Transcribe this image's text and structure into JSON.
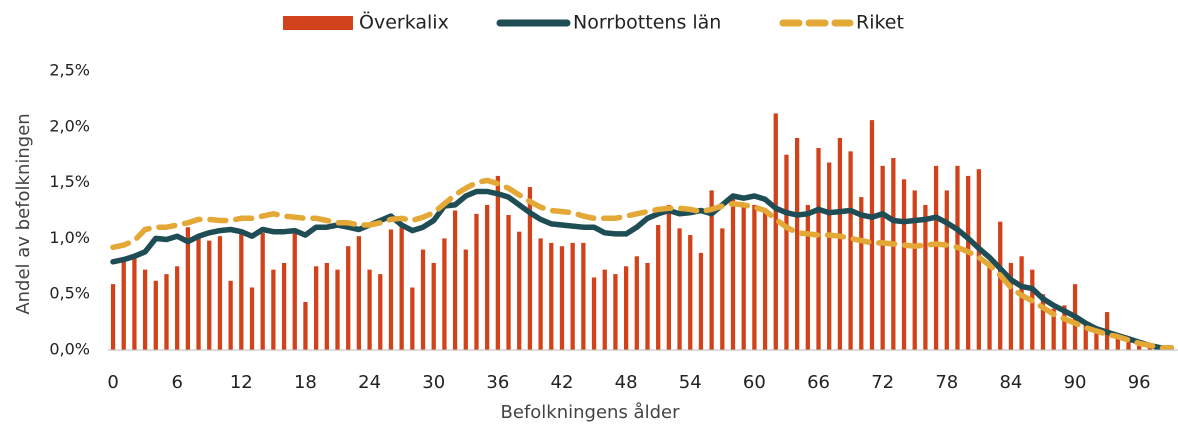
{
  "chart_data": {
    "type": "bar",
    "x_label": "Befolkningens ålder",
    "y_label": "Andel av befolkningen",
    "x": [
      0,
      1,
      2,
      3,
      4,
      5,
      6,
      7,
      8,
      9,
      10,
      11,
      12,
      13,
      14,
      15,
      16,
      17,
      18,
      19,
      20,
      21,
      22,
      23,
      24,
      25,
      26,
      27,
      28,
      29,
      30,
      31,
      32,
      33,
      34,
      35,
      36,
      37,
      38,
      39,
      40,
      41,
      42,
      43,
      44,
      45,
      46,
      47,
      48,
      49,
      50,
      51,
      52,
      53,
      54,
      55,
      56,
      57,
      58,
      59,
      60,
      61,
      62,
      63,
      64,
      65,
      66,
      67,
      68,
      69,
      70,
      71,
      72,
      73,
      74,
      75,
      76,
      77,
      78,
      79,
      80,
      81,
      82,
      83,
      84,
      85,
      86,
      87,
      88,
      89,
      90,
      91,
      92,
      93,
      94,
      95,
      96,
      97,
      98,
      99
    ],
    "xlim": [
      -0.5,
      99.5
    ],
    "xticks": [
      0,
      6,
      12,
      18,
      24,
      30,
      36,
      42,
      48,
      54,
      60,
      66,
      72,
      78,
      84,
      90,
      96
    ],
    "ylim": [
      0,
      2.5
    ],
    "yticks": [
      {
        "value": 0,
        "label": "0,0%"
      },
      {
        "value": 0.5,
        "label": "0,5%"
      },
      {
        "value": 1,
        "label": "1,0%"
      },
      {
        "value": 1.5,
        "label": "1,5%"
      },
      {
        "value": 2,
        "label": "2,0%"
      },
      {
        "value": 2.5,
        "label": "2,5%"
      }
    ],
    "grid": false,
    "legend": "top",
    "series": [
      {
        "name": "Överkalix",
        "type": "bar",
        "color": "#d2421a",
        "values": [
          0.59,
          0.8,
          0.83,
          0.72,
          0.62,
          0.68,
          0.75,
          1.1,
          1.0,
          0.98,
          1.02,
          0.62,
          1.05,
          0.56,
          1.05,
          0.72,
          0.78,
          1.05,
          0.43,
          0.75,
          0.78,
          0.72,
          0.93,
          1.02,
          0.72,
          0.68,
          1.08,
          1.1,
          0.56,
          0.9,
          0.78,
          1.0,
          1.25,
          0.9,
          1.22,
          1.3,
          1.56,
          1.21,
          1.06,
          1.46,
          1.0,
          0.96,
          0.93,
          0.96,
          0.96,
          0.65,
          0.72,
          0.68,
          0.75,
          0.84,
          0.78,
          1.12,
          1.3,
          1.09,
          1.03,
          0.87,
          1.43,
          1.09,
          1.37,
          1.3,
          1.3,
          1.25,
          2.12,
          1.75,
          1.9,
          1.3,
          1.81,
          1.68,
          1.9,
          1.78,
          1.37,
          2.06,
          1.65,
          1.72,
          1.53,
          1.43,
          1.3,
          1.65,
          1.43,
          1.65,
          1.56,
          1.62,
          0.75,
          1.15,
          0.78,
          0.84,
          0.72,
          0.5,
          0.37,
          0.4,
          0.59,
          0.22,
          0.19,
          0.34,
          0.15,
          0.12,
          0.06,
          0.03,
          0.02,
          0.01
        ]
      },
      {
        "name": "Norrbottens län",
        "type": "line",
        "color": "#1e4d55",
        "values": [
          0.79,
          0.81,
          0.84,
          0.88,
          1.0,
          0.99,
          1.02,
          0.97,
          1.02,
          1.05,
          1.07,
          1.08,
          1.06,
          1.02,
          1.08,
          1.06,
          1.06,
          1.07,
          1.03,
          1.1,
          1.1,
          1.12,
          1.1,
          1.08,
          1.12,
          1.16,
          1.2,
          1.12,
          1.07,
          1.1,
          1.16,
          1.29,
          1.3,
          1.38,
          1.42,
          1.42,
          1.4,
          1.37,
          1.3,
          1.23,
          1.17,
          1.13,
          1.12,
          1.11,
          1.1,
          1.1,
          1.05,
          1.04,
          1.04,
          1.1,
          1.18,
          1.22,
          1.25,
          1.22,
          1.23,
          1.25,
          1.22,
          1.3,
          1.38,
          1.36,
          1.38,
          1.35,
          1.27,
          1.23,
          1.21,
          1.22,
          1.26,
          1.23,
          1.24,
          1.25,
          1.21,
          1.19,
          1.22,
          1.16,
          1.15,
          1.16,
          1.17,
          1.19,
          1.14,
          1.08,
          1.0,
          0.91,
          0.83,
          0.73,
          0.63,
          0.57,
          0.55,
          0.46,
          0.4,
          0.35,
          0.3,
          0.24,
          0.19,
          0.16,
          0.13,
          0.1,
          0.07,
          0.04,
          0.02,
          0.02
        ]
      },
      {
        "name": "Riket",
        "type": "line",
        "dashed": true,
        "color": "#e3a835",
        "values": [
          0.92,
          0.94,
          0.98,
          1.08,
          1.1,
          1.1,
          1.12,
          1.14,
          1.17,
          1.17,
          1.16,
          1.16,
          1.18,
          1.18,
          1.2,
          1.22,
          1.2,
          1.19,
          1.18,
          1.18,
          1.16,
          1.14,
          1.14,
          1.12,
          1.12,
          1.14,
          1.17,
          1.18,
          1.16,
          1.19,
          1.23,
          1.31,
          1.39,
          1.45,
          1.5,
          1.52,
          1.49,
          1.45,
          1.39,
          1.33,
          1.28,
          1.25,
          1.24,
          1.23,
          1.2,
          1.18,
          1.18,
          1.18,
          1.2,
          1.22,
          1.24,
          1.26,
          1.27,
          1.27,
          1.26,
          1.24,
          1.26,
          1.29,
          1.31,
          1.3,
          1.28,
          1.25,
          1.17,
          1.1,
          1.05,
          1.04,
          1.03,
          1.03,
          1.02,
          1.0,
          0.98,
          0.96,
          0.96,
          0.95,
          0.94,
          0.93,
          0.94,
          0.95,
          0.94,
          0.92,
          0.88,
          0.83,
          0.76,
          0.67,
          0.56,
          0.49,
          0.44,
          0.38,
          0.32,
          0.28,
          0.24,
          0.2,
          0.17,
          0.14,
          0.12,
          0.09,
          0.06,
          0.04,
          0.02,
          0.02
        ]
      }
    ]
  }
}
